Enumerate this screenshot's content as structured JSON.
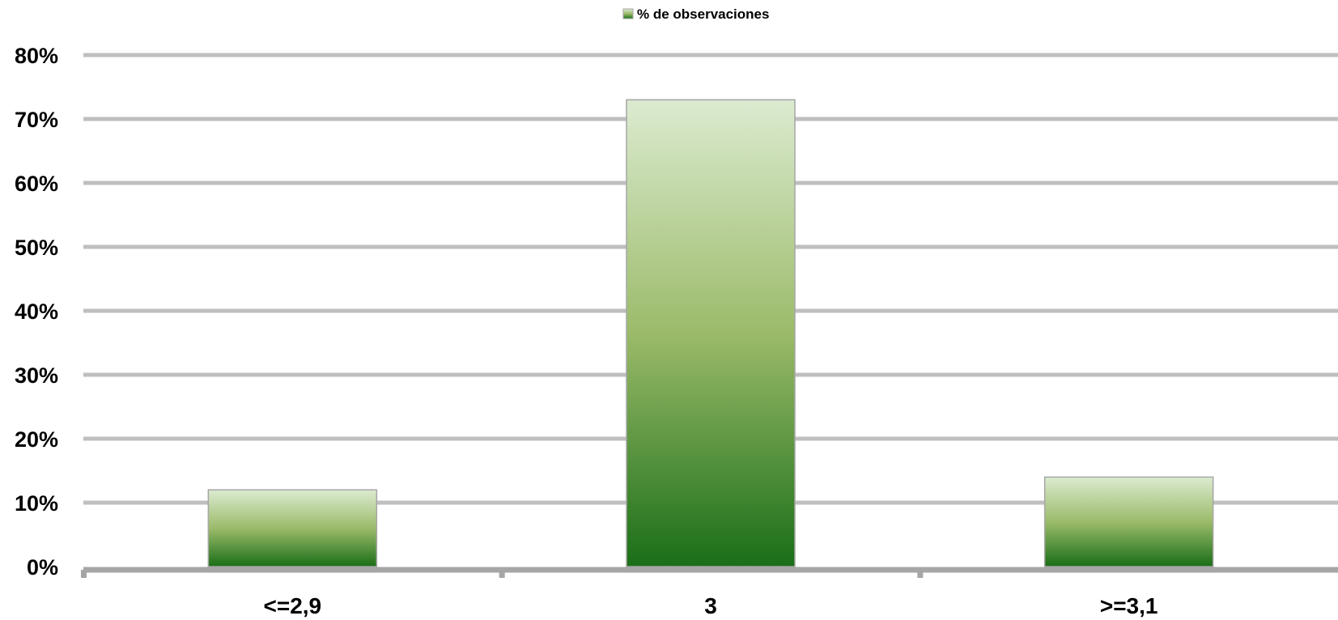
{
  "chart_data": {
    "type": "bar",
    "categories": [
      "<=2,9",
      "3",
      ">=3,1"
    ],
    "series": [
      {
        "name": "% de observaciones",
        "values": [
          12,
          73,
          14
        ]
      }
    ],
    "ylim": [
      0,
      80
    ],
    "yticks": [
      0,
      10,
      20,
      30,
      40,
      50,
      60,
      70,
      80
    ],
    "ytick_labels": [
      "0%",
      "10%",
      "20%",
      "30%",
      "40%",
      "50%",
      "60%",
      "70%",
      "80%"
    ],
    "grid": true,
    "legend_position": "top-center",
    "colors": {
      "bar_top": "#dcebd0",
      "bar_mid": "#9bbb6a",
      "bar_bottom": "#1a6e17",
      "bar_border": "#a6a6a6",
      "gridline": "#bfbfbf",
      "axis": "#a6a6a6"
    }
  }
}
